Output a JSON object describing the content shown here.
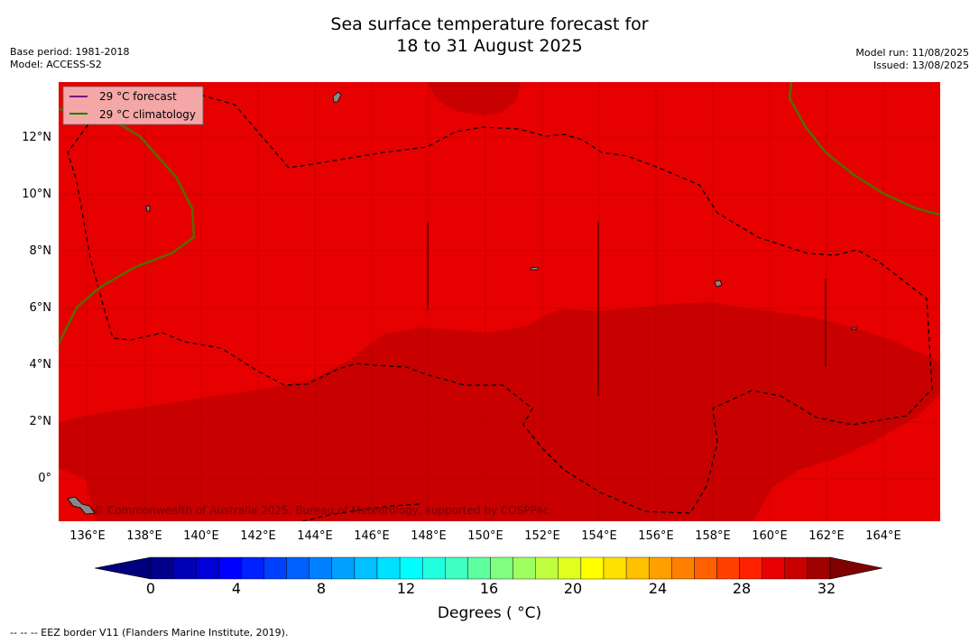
{
  "title_line1": "Sea surface temperature forecast for",
  "title_line2": "18 to 31 August 2025",
  "base_period": "Base period: 1981-2018",
  "model": "Model: ACCESS-S2",
  "model_run": "Model run: 11/08/2025",
  "issued": "Issued: 13/08/2025",
  "legend": {
    "forecast": "29 °C  forecast",
    "climatology": "29 °C  climatology",
    "forecast_color": "#800080",
    "climatology_color": "#008000"
  },
  "credit": "© Commonwealth of Australia 2025, Bureau of Meteorology, supported by COSPPac",
  "lat_labels": [
    "12°N",
    "10°N",
    "8°N",
    "6°N",
    "4°N",
    "2°N",
    "0°"
  ],
  "lon_labels": [
    "136°E",
    "138°E",
    "140°E",
    "142°E",
    "144°E",
    "146°E",
    "148°E",
    "150°E",
    "152°E",
    "154°E",
    "156°E",
    "158°E",
    "160°E",
    "162°E",
    "164°E"
  ],
  "colorbar": {
    "ticks": [
      "0",
      "4",
      "8",
      "12",
      "16",
      "20",
      "24",
      "28",
      "32"
    ],
    "label": "Degrees ( °C)",
    "colors": [
      "#00008b",
      "#0000b4",
      "#0000d8",
      "#0000ff",
      "#0020ff",
      "#0040ff",
      "#0060ff",
      "#0080ff",
      "#00a0ff",
      "#00c0ff",
      "#00e0ff",
      "#00ffff",
      "#20ffe0",
      "#40ffc0",
      "#60ffa0",
      "#80ff80",
      "#a0ff60",
      "#c0ff40",
      "#e0ff20",
      "#ffff00",
      "#ffe000",
      "#ffc000",
      "#ffa000",
      "#ff8000",
      "#ff6000",
      "#ff4000",
      "#ff2000",
      "#e60000",
      "#c80000",
      "#a00000"
    ],
    "under_color": "#00007f",
    "over_color": "#7f0000"
  },
  "map_colors": {
    "warm_28_29": "#e60000",
    "warm_29_30": "#c80000"
  },
  "eez_note": "--  --  -- EEZ border V11 (Flanders Marine Institute, 2019)."
}
